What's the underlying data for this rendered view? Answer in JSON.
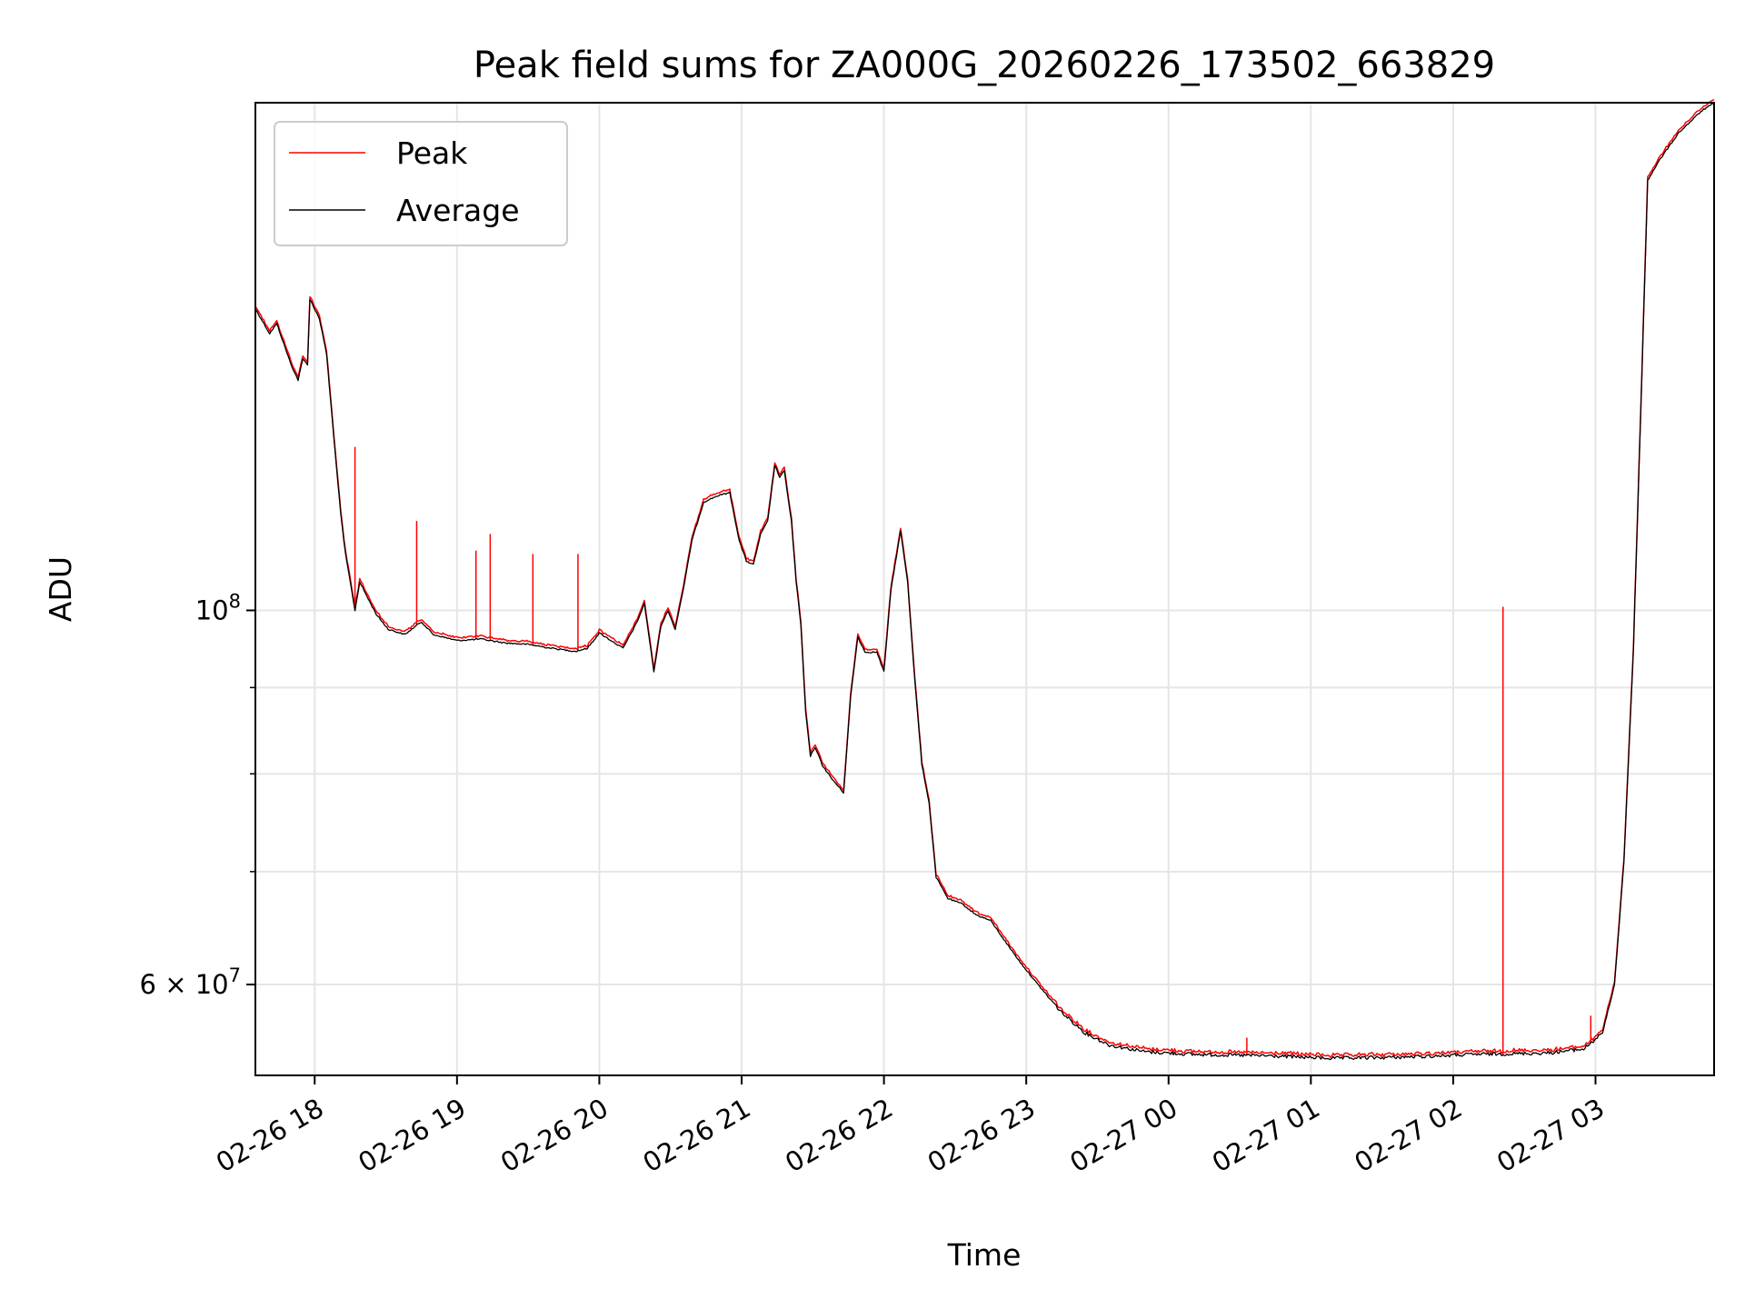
{
  "chart_data": {
    "type": "line",
    "title": "Peak field sums for ZA000G_20260226_173502_663829",
    "xlabel": "Time",
    "ylabel": "ADU",
    "xlim": [
      "2026-02-26T17:35",
      "2026-02-27T03:50"
    ],
    "ylim": [
      53000000,
      200000000
    ],
    "yscale": "log",
    "grid": true,
    "legend_position": "top-left",
    "x_ticks": [
      {
        "t": "2026-02-26T18:00",
        "label": "02-26 18"
      },
      {
        "t": "2026-02-26T19:00",
        "label": "02-26 19"
      },
      {
        "t": "2026-02-26T20:00",
        "label": "02-26 20"
      },
      {
        "t": "2026-02-26T21:00",
        "label": "02-26 21"
      },
      {
        "t": "2026-02-26T22:00",
        "label": "02-26 22"
      },
      {
        "t": "2026-02-26T23:00",
        "label": "02-26 23"
      },
      {
        "t": "2026-02-27T00:00",
        "label": "02-27 00"
      },
      {
        "t": "2026-02-27T01:00",
        "label": "02-27 01"
      },
      {
        "t": "2026-02-27T02:00",
        "label": "02-27 02"
      },
      {
        "t": "2026-02-27T03:00",
        "label": "02-27 03"
      }
    ],
    "y_major_ticks": [
      {
        "value": 100000000,
        "base": "10",
        "exp": "8",
        "mult": ""
      },
      {
        "value": 60000000,
        "base": "10",
        "exp": "7",
        "mult": "6"
      }
    ],
    "y_minor_grid": [
      70000000,
      80000000,
      90000000
    ],
    "series": [
      {
        "name": "Average",
        "color": "#000000",
        "points": [
          [
            "2026-02-26T17:35",
            151000000
          ],
          [
            "2026-02-26T17:41",
            146000000
          ],
          [
            "2026-02-26T17:44",
            148000000
          ],
          [
            "2026-02-26T17:50",
            140000000
          ],
          [
            "2026-02-26T17:53",
            137000000
          ],
          [
            "2026-02-26T17:55",
            141000000
          ],
          [
            "2026-02-26T17:57",
            140000000
          ],
          [
            "2026-02-26T17:58",
            153000000
          ],
          [
            "2026-02-26T18:02",
            149000000
          ],
          [
            "2026-02-26T18:05",
            142000000
          ],
          [
            "2026-02-26T18:08",
            127000000
          ],
          [
            "2026-02-26T18:11",
            114000000
          ],
          [
            "2026-02-26T18:13",
            108000000
          ],
          [
            "2026-02-26T18:15",
            104000000
          ],
          [
            "2026-02-26T18:17",
            100000000
          ],
          [
            "2026-02-26T18:19",
            104000000
          ],
          [
            "2026-02-26T18:22",
            102000000
          ],
          [
            "2026-02-26T18:26",
            99500000
          ],
          [
            "2026-02-26T18:31",
            97500000
          ],
          [
            "2026-02-26T18:38",
            96800000
          ],
          [
            "2026-02-26T18:45",
            98500000
          ],
          [
            "2026-02-26T18:50",
            96800000
          ],
          [
            "2026-02-26T19:00",
            96000000
          ],
          [
            "2026-02-26T19:10",
            96200000
          ],
          [
            "2026-02-26T19:20",
            95700000
          ],
          [
            "2026-02-26T19:30",
            95500000
          ],
          [
            "2026-02-26T19:40",
            95000000
          ],
          [
            "2026-02-26T19:50",
            94600000
          ],
          [
            "2026-02-26T19:55",
            95000000
          ],
          [
            "2026-02-26T20:00",
            97000000
          ],
          [
            "2026-02-26T20:05",
            96000000
          ],
          [
            "2026-02-26T20:10",
            95000000
          ],
          [
            "2026-02-26T20:16",
            98500000
          ],
          [
            "2026-02-26T20:19",
            101000000
          ],
          [
            "2026-02-26T20:23",
            92000000
          ],
          [
            "2026-02-26T20:26",
            98000000
          ],
          [
            "2026-02-26T20:29",
            100000000
          ],
          [
            "2026-02-26T20:32",
            97500000
          ],
          [
            "2026-02-26T20:36",
            104000000
          ],
          [
            "2026-02-26T20:39",
            110000000
          ],
          [
            "2026-02-26T20:44",
            116000000
          ],
          [
            "2026-02-26T20:50",
            117000000
          ],
          [
            "2026-02-26T20:55",
            117500000
          ],
          [
            "2026-02-26T20:59",
            110000000
          ],
          [
            "2026-02-26T21:02",
            107000000
          ],
          [
            "2026-02-26T21:05",
            106500000
          ],
          [
            "2026-02-26T21:08",
            111000000
          ],
          [
            "2026-02-26T21:11",
            113000000
          ],
          [
            "2026-02-26T21:14",
            122000000
          ],
          [
            "2026-02-26T21:16",
            120000000
          ],
          [
            "2026-02-26T21:18",
            121000000
          ],
          [
            "2026-02-26T21:21",
            113000000
          ],
          [
            "2026-02-26T21:23",
            104000000
          ],
          [
            "2026-02-26T21:25",
            98000000
          ],
          [
            "2026-02-26T21:27",
            87000000
          ],
          [
            "2026-02-26T21:29",
            82000000
          ],
          [
            "2026-02-26T21:31",
            83000000
          ],
          [
            "2026-02-26T21:34",
            81000000
          ],
          [
            "2026-02-26T21:38",
            79500000
          ],
          [
            "2026-02-26T21:43",
            78000000
          ],
          [
            "2026-02-26T21:46",
            89000000
          ],
          [
            "2026-02-26T21:49",
            96500000
          ],
          [
            "2026-02-26T21:52",
            94500000
          ],
          [
            "2026-02-26T21:57",
            94500000
          ],
          [
            "2026-02-26T22:00",
            92000000
          ],
          [
            "2026-02-26T22:03",
            103000000
          ],
          [
            "2026-02-26T22:07",
            111500000
          ],
          [
            "2026-02-26T22:10",
            104000000
          ],
          [
            "2026-02-26T22:13",
            91000000
          ],
          [
            "2026-02-26T22:16",
            81000000
          ],
          [
            "2026-02-26T22:19",
            77000000
          ],
          [
            "2026-02-26T22:22",
            69500000
          ],
          [
            "2026-02-26T22:27",
            67500000
          ],
          [
            "2026-02-26T22:33",
            67000000
          ],
          [
            "2026-02-26T22:39",
            66000000
          ],
          [
            "2026-02-26T22:45",
            65500000
          ],
          [
            "2026-02-26T22:50",
            64000000
          ],
          [
            "2026-02-26T22:57",
            62000000
          ],
          [
            "2026-02-26T23:05",
            60000000
          ],
          [
            "2026-02-26T23:15",
            57800000
          ],
          [
            "2026-02-26T23:25",
            56200000
          ],
          [
            "2026-02-26T23:35",
            55300000
          ],
          [
            "2026-02-26T23:50",
            54800000
          ],
          [
            "2026-02-27T00:10",
            54600000
          ],
          [
            "2026-02-27T00:40",
            54500000
          ],
          [
            "2026-02-27T01:10",
            54300000
          ],
          [
            "2026-02-27T01:40",
            54400000
          ],
          [
            "2026-02-27T02:10",
            54600000
          ],
          [
            "2026-02-27T02:40",
            54700000
          ],
          [
            "2026-02-27T02:55",
            55000000
          ],
          [
            "2026-02-27T03:03",
            56200000
          ],
          [
            "2026-02-27T03:08",
            60000000
          ],
          [
            "2026-02-27T03:12",
            71000000
          ],
          [
            "2026-02-27T03:16",
            95000000
          ],
          [
            "2026-02-27T03:19",
            130000000
          ],
          [
            "2026-02-27T03:22",
            180000000
          ],
          [
            "2026-02-27T03:27",
            185000000
          ],
          [
            "2026-02-27T03:35",
            192000000
          ],
          [
            "2026-02-27T03:45",
            198000000
          ],
          [
            "2026-02-27T03:50",
            200000000
          ]
        ]
      },
      {
        "name": "Peak",
        "color": "#ff0000",
        "spikes": [
          [
            "2026-02-26T18:17",
            125000000
          ],
          [
            "2026-02-26T18:43",
            113000000
          ],
          [
            "2026-02-26T19:08",
            108500000
          ],
          [
            "2026-02-26T19:14",
            111000000
          ],
          [
            "2026-02-26T19:32",
            108000000
          ],
          [
            "2026-02-26T19:51",
            108000000
          ],
          [
            "2026-02-27T00:33",
            55800000
          ],
          [
            "2026-02-27T02:21",
            100500000
          ],
          [
            "2026-02-27T02:58",
            57500000
          ]
        ]
      }
    ]
  }
}
